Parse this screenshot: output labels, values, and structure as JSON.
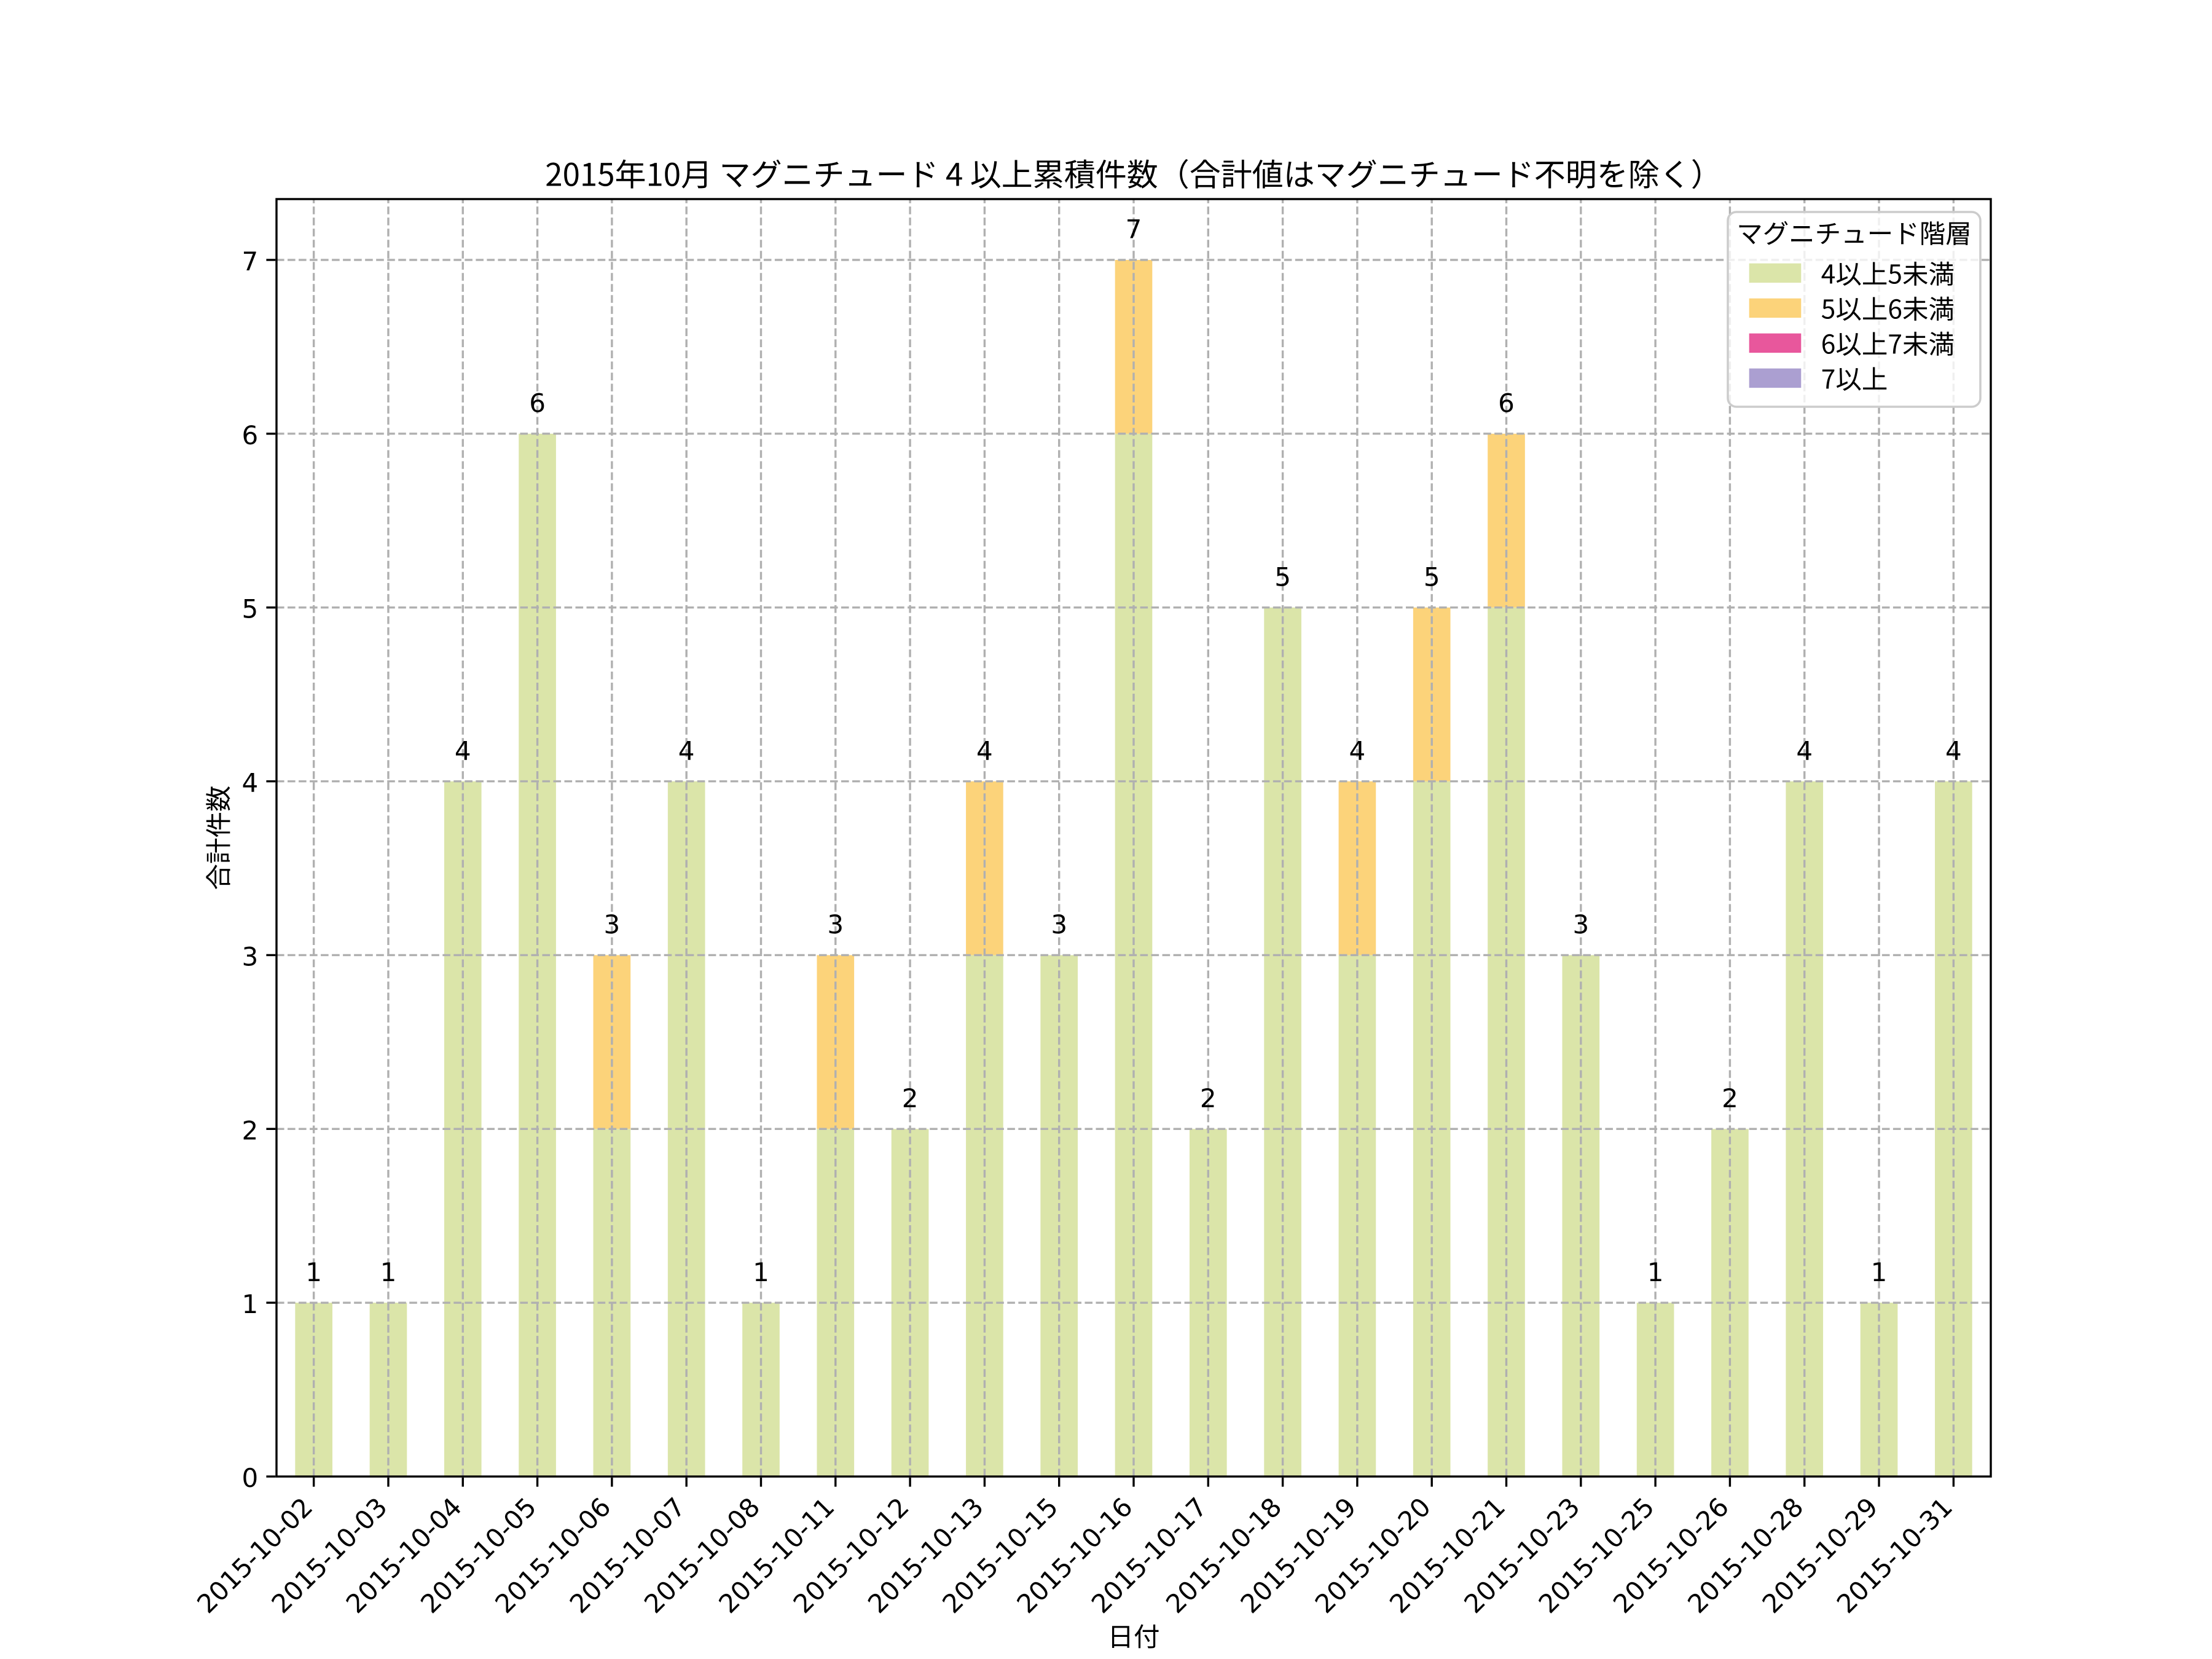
{
  "title": "2015年10月 マグニチュード 4 以上累積件数（合計値はマグニチュード不明を除く）",
  "xlabel": "日付",
  "ylabel": "合計件数",
  "legend": {
    "title": "マグニチュード階層",
    "items": [
      {
        "label": "4以上5未満",
        "color": "#dbe5a9"
      },
      {
        "label": "5以上6未満",
        "color": "#fcd37a"
      },
      {
        "label": "6以上7未満",
        "color": "#e8579c"
      },
      {
        "label": "7以上",
        "color": "#ab9fd1"
      }
    ]
  },
  "colors": {
    "grid": "#b0b0b0",
    "axes": "#000000",
    "text": "#000000",
    "legend_frame": "#cccccc",
    "background": "#ffffff"
  },
  "chart_data": {
    "type": "bar",
    "stacked": true,
    "categories": [
      "2015-10-02",
      "2015-10-03",
      "2015-10-04",
      "2015-10-05",
      "2015-10-06",
      "2015-10-07",
      "2015-10-08",
      "2015-10-11",
      "2015-10-12",
      "2015-10-13",
      "2015-10-15",
      "2015-10-16",
      "2015-10-17",
      "2015-10-18",
      "2015-10-19",
      "2015-10-20",
      "2015-10-21",
      "2015-10-23",
      "2015-10-25",
      "2015-10-26",
      "2015-10-28",
      "2015-10-29",
      "2015-10-31"
    ],
    "series": [
      {
        "name": "4以上5未満",
        "color": "#dbe5a9",
        "values": [
          1,
          1,
          4,
          6,
          2,
          4,
          1,
          2,
          2,
          3,
          3,
          6,
          2,
          5,
          3,
          4,
          5,
          3,
          1,
          2,
          4,
          1,
          4
        ]
      },
      {
        "name": "5以上6未満",
        "color": "#fcd37a",
        "values": [
          0,
          0,
          0,
          0,
          1,
          0,
          0,
          1,
          0,
          1,
          0,
          1,
          0,
          0,
          1,
          1,
          1,
          0,
          0,
          0,
          0,
          0,
          0
        ]
      },
      {
        "name": "6以上7未満",
        "color": "#e8579c",
        "values": [
          0,
          0,
          0,
          0,
          0,
          0,
          0,
          0,
          0,
          0,
          0,
          0,
          0,
          0,
          0,
          0,
          0,
          0,
          0,
          0,
          0,
          0,
          0
        ]
      },
      {
        "name": "7以上",
        "color": "#ab9fd1",
        "values": [
          0,
          0,
          0,
          0,
          0,
          0,
          0,
          0,
          0,
          0,
          0,
          0,
          0,
          0,
          0,
          0,
          0,
          0,
          0,
          0,
          0,
          0,
          0
        ]
      }
    ],
    "bar_total_labels": [
      "1",
      "1",
      "4",
      "6",
      "3",
      "4",
      "1",
      "3",
      "2",
      "4",
      "3",
      "7",
      "2",
      "5",
      "4",
      "5",
      "6",
      "3",
      "1",
      "2",
      "4",
      "1",
      "4"
    ],
    "yticks": [
      "0",
      "1",
      "2",
      "3",
      "4",
      "5",
      "6",
      "7"
    ],
    "ylim": [
      0,
      7.35
    ],
    "grid": true,
    "grid_linestyle": "dashed",
    "legend_position": "upper right"
  }
}
